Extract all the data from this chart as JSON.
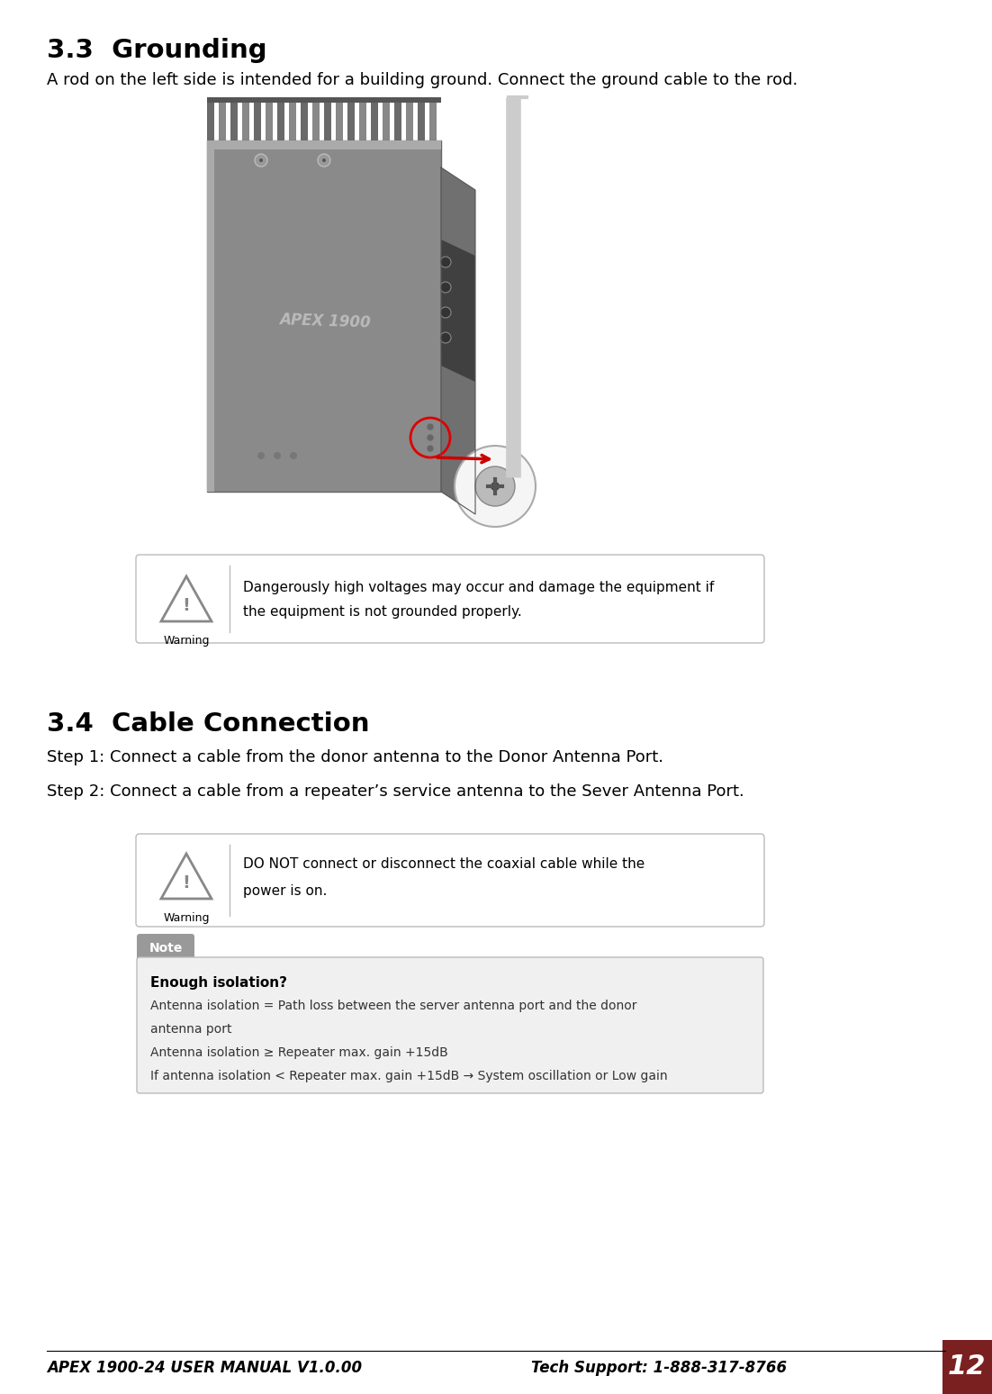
{
  "bg_color": "#ffffff",
  "title_33": "3.3  Grounding",
  "text_33": "A rod on the left side is intended for a building ground. Connect the ground cable to the rod.",
  "title_34": "3.4  Cable Connection",
  "text_34_step1": "Step 1: Connect a cable from the donor antenna to the Donor Antenna Port.",
  "text_34_step2": "Step 2: Connect a cable from a repeater’s service antenna to the Sever Antenna Port.",
  "warning_text_33_line1": "Dangerously high voltages may occur and damage the equipment if",
  "warning_text_33_line2": "the equipment is not grounded properly.",
  "warning_text_34_line1": "DO NOT connect or disconnect the coaxial cable while the",
  "warning_text_34_line2": "power is on.",
  "note_title": "Enough isolation?",
  "note_line1": "Antenna isolation = Path loss between the server antenna port and the donor",
  "note_line2": "antenna port",
  "note_line3": "Antenna isolation ≥ Repeater max. gain +15dB",
  "note_line4": "If antenna isolation < Repeater max. gain +15dB → System oscillation or Low gain",
  "footer_left": "APEX 1900-24 USER MANUAL V1.0.00",
  "footer_right": "Tech Support: 1-888-317-8766",
  "page_number": "12",
  "page_color": "#7b2020",
  "warning_label": "Warning",
  "note_label": "Note",
  "device_body_color": "#8a8a8a",
  "device_shadow_color": "#6a6a6a",
  "device_light_color": "#aaaaaa",
  "device_fin_color": "#777777",
  "wall_color": "#cccccc",
  "note_bg": "#f0f0f0",
  "note_label_bg": "#999999",
  "warn_tri_color": "#888888",
  "warn_border": "#cccccc"
}
